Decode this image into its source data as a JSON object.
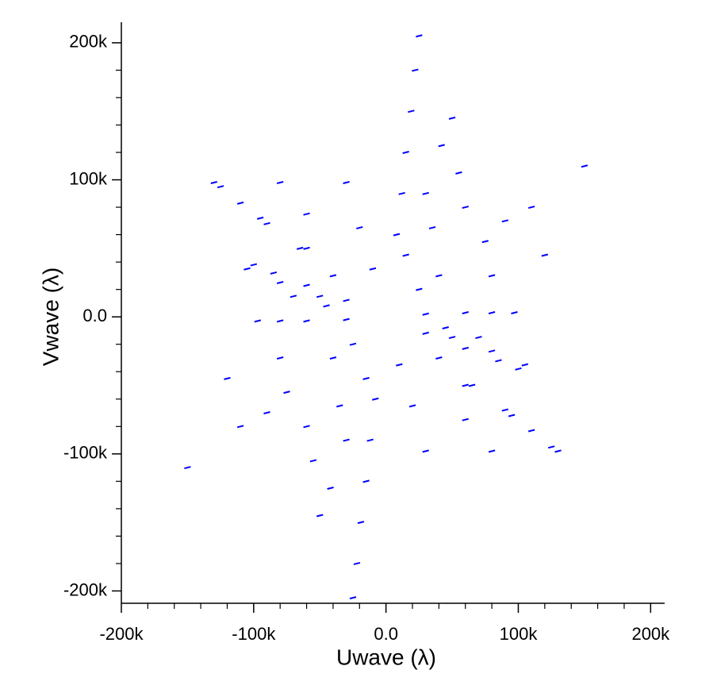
{
  "chart_data": {
    "type": "scatter",
    "xlabel": "Uwave (λ)",
    "ylabel": "Vwave (λ)",
    "color": "#0000ff",
    "xlim": [
      -200000,
      210600
    ],
    "ylim": [
      -209000,
      215000
    ],
    "xticks": [
      {
        "value": -200000,
        "label": "-200k"
      },
      {
        "value": -100000,
        "label": "-100k"
      },
      {
        "value": 0,
        "label": "0.0"
      },
      {
        "value": 100000,
        "label": "100k"
      },
      {
        "value": 200000,
        "label": "200k"
      }
    ],
    "yticks": [
      {
        "value": -200000,
        "label": "-200k"
      },
      {
        "value": -100000,
        "label": "-100k"
      },
      {
        "value": 0,
        "label": "0.0"
      },
      {
        "value": 100000,
        "label": "100k"
      },
      {
        "value": 200000,
        "label": "200k"
      }
    ],
    "xminorticks": [
      -180000,
      -160000,
      -140000,
      -120000,
      -80000,
      -60000,
      -40000,
      -20000,
      20000,
      40000,
      60000,
      80000,
      120000,
      140000,
      160000,
      180000
    ],
    "yminorticks": [
      -180000,
      -160000,
      -140000,
      -120000,
      -80000,
      -60000,
      -40000,
      -20000,
      20000,
      40000,
      60000,
      80000,
      120000,
      140000,
      160000,
      180000
    ],
    "grid": false,
    "x": [
      8000,
      12000,
      15000,
      19000,
      22000,
      25000,
      -40000,
      -65000,
      -90000,
      -110000,
      -130000,
      40000,
      75000,
      110000,
      150000,
      15000,
      30000,
      42000,
      50000,
      -10000,
      -20000,
      -30000,
      30000,
      60000,
      80000,
      97000,
      -30000,
      -60000,
      -85000,
      -100000,
      80000,
      120000,
      -60000,
      -80000,
      55000,
      50000,
      80000,
      105000,
      60000,
      95000,
      125000,
      -45000,
      -70000,
      35000,
      60000,
      90000,
      25000,
      -8000,
      -12000,
      -15000,
      -19000,
      -22000,
      -25000,
      40000,
      65000,
      90000,
      110000,
      130000,
      -40000,
      -75000,
      -110000,
      -150000,
      -15000,
      -30000,
      -42000,
      -50000,
      10000,
      20000,
      30000,
      -30000,
      -60000,
      -80000,
      -97000,
      30000,
      60000,
      85000,
      100000,
      -80000,
      -120000,
      60000,
      80000,
      -55000,
      -50000,
      -80000,
      -105000,
      -60000,
      -95000,
      -125000,
      45000,
      70000,
      -35000,
      -60000,
      -90000,
      -25000
    ],
    "y": [
      60000,
      90000,
      120000,
      150000,
      180000,
      205000,
      30000,
      50000,
      68000,
      83000,
      98000,
      30000,
      55000,
      80000,
      110000,
      45000,
      90000,
      125000,
      145000,
      35000,
      65000,
      98000,
      2000,
      3000,
      3000,
      3000,
      12000,
      23000,
      32000,
      38000,
      30000,
      45000,
      75000,
      98000,
      105000,
      -15000,
      -25000,
      -35000,
      -50000,
      -72000,
      -95000,
      8000,
      15000,
      65000,
      80000,
      70000,
      20000,
      -60000,
      -90000,
      -120000,
      -150000,
      -180000,
      -205000,
      -30000,
      -50000,
      -68000,
      -83000,
      -98000,
      -30000,
      -55000,
      -80000,
      -110000,
      -45000,
      -90000,
      -125000,
      -145000,
      -35000,
      -65000,
      -98000,
      -2000,
      -3000,
      -3000,
      -3000,
      -12000,
      -23000,
      -32000,
      -38000,
      -30000,
      -45000,
      -75000,
      -98000,
      -105000,
      15000,
      25000,
      35000,
      50000,
      72000,
      95000,
      -8000,
      -15000,
      -65000,
      -80000,
      -70000,
      -20000
    ]
  }
}
